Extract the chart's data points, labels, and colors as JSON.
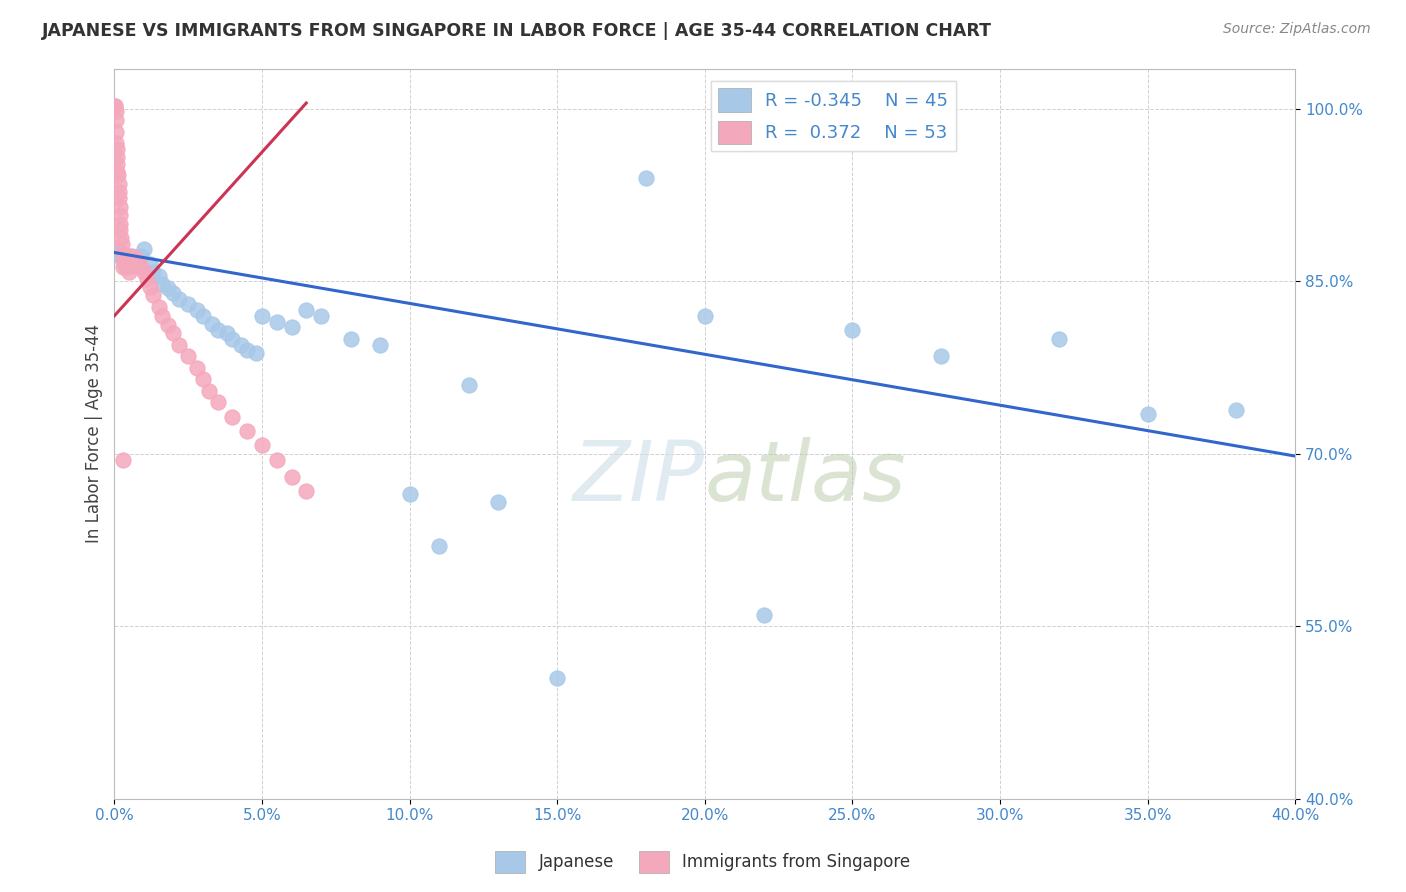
{
  "title": "JAPANESE VS IMMIGRANTS FROM SINGAPORE IN LABOR FORCE | AGE 35-44 CORRELATION CHART",
  "source": "Source: ZipAtlas.com",
  "ylabel": "In Labor Force | Age 35-44",
  "xlim_min": 0.0,
  "xlim_max": 0.4,
  "ylim_min": 0.4,
  "ylim_max": 1.035,
  "xticks": [
    0.0,
    0.05,
    0.1,
    0.15,
    0.2,
    0.25,
    0.3,
    0.35,
    0.4
  ],
  "yticks": [
    0.4,
    0.55,
    0.7,
    0.85,
    1.0
  ],
  "blue_color": "#a8c8e8",
  "pink_color": "#f4a8bc",
  "blue_line_color": "#3366cc",
  "pink_line_color": "#cc3355",
  "watermark_color": "#ccdde8",
  "blue_line_x0": 0.0,
  "blue_line_y0": 0.875,
  "blue_line_x1": 0.4,
  "blue_line_y1": 0.698,
  "pink_line_x0": 0.0,
  "pink_line_y0": 0.82,
  "pink_line_x1": 0.065,
  "pink_line_y1": 1.005,
  "blue_x": [
    0.001,
    0.002,
    0.003,
    0.005,
    0.007,
    0.008,
    0.009,
    0.01,
    0.012,
    0.013,
    0.015,
    0.016,
    0.018,
    0.02,
    0.022,
    0.025,
    0.028,
    0.03,
    0.033,
    0.035,
    0.038,
    0.04,
    0.043,
    0.045,
    0.048,
    0.05,
    0.055,
    0.06,
    0.065,
    0.07,
    0.08,
    0.09,
    0.1,
    0.11,
    0.12,
    0.13,
    0.15,
    0.18,
    0.2,
    0.22,
    0.25,
    0.28,
    0.32,
    0.35,
    0.38
  ],
  "blue_y": [
    0.878,
    0.872,
    0.87,
    0.872,
    0.87,
    0.868,
    0.872,
    0.878,
    0.865,
    0.858,
    0.855,
    0.848,
    0.844,
    0.84,
    0.835,
    0.83,
    0.825,
    0.82,
    0.813,
    0.808,
    0.805,
    0.8,
    0.795,
    0.79,
    0.788,
    0.82,
    0.815,
    0.81,
    0.825,
    0.82,
    0.8,
    0.795,
    0.665,
    0.62,
    0.76,
    0.658,
    0.505,
    0.94,
    0.82,
    0.56,
    0.808,
    0.785,
    0.8,
    0.735,
    0.738
  ],
  "pink_x": [
    0.0002,
    0.0003,
    0.0004,
    0.0005,
    0.0006,
    0.0007,
    0.0008,
    0.001,
    0.001,
    0.001,
    0.0012,
    0.0014,
    0.0015,
    0.0016,
    0.0018,
    0.002,
    0.002,
    0.002,
    0.0022,
    0.0025,
    0.003,
    0.003,
    0.003,
    0.004,
    0.004,
    0.005,
    0.005,
    0.006,
    0.006,
    0.007,
    0.008,
    0.009,
    0.01,
    0.011,
    0.012,
    0.013,
    0.015,
    0.016,
    0.018,
    0.02,
    0.022,
    0.025,
    0.028,
    0.03,
    0.032,
    0.035,
    0.04,
    0.045,
    0.05,
    0.055,
    0.06,
    0.065,
    0.003
  ],
  "pink_y": [
    1.002,
    1.002,
    0.998,
    0.99,
    0.98,
    0.97,
    0.965,
    0.958,
    0.952,
    0.945,
    0.942,
    0.935,
    0.928,
    0.922,
    0.915,
    0.908,
    0.9,
    0.895,
    0.888,
    0.882,
    0.875,
    0.868,
    0.862,
    0.87,
    0.862,
    0.868,
    0.858,
    0.872,
    0.863,
    0.87,
    0.868,
    0.862,
    0.858,
    0.852,
    0.845,
    0.838,
    0.828,
    0.82,
    0.812,
    0.805,
    0.795,
    0.785,
    0.775,
    0.765,
    0.755,
    0.745,
    0.732,
    0.72,
    0.708,
    0.695,
    0.68,
    0.668,
    0.695
  ]
}
